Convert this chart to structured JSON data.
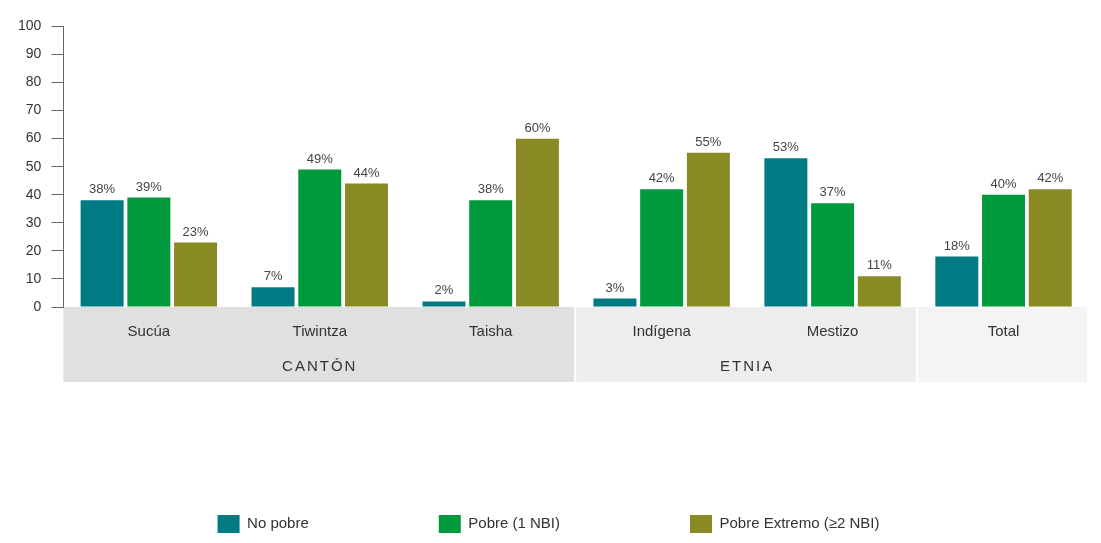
{
  "chart_data": {
    "type": "bar",
    "categories": [
      "Sucúa",
      "Tiwintza",
      "Taisha",
      "Indígena",
      "Mestizo",
      "Total"
    ],
    "series": [
      {
        "name": "No pobre",
        "color": "#007b84",
        "values": [
          38,
          7,
          2,
          3,
          53,
          18
        ],
        "value_labels": [
          "38%",
          "7%",
          "2%",
          "3%",
          "53%",
          "18%"
        ]
      },
      {
        "name": "Pobre (1 NBI)",
        "color": "#009a3d",
        "values": [
          39,
          49,
          38,
          42,
          37,
          40
        ],
        "value_labels": [
          "39%",
          "49%",
          "38%",
          "42%",
          "37%",
          "40%"
        ]
      },
      {
        "name": "Pobre Extremo (≥2 NBI)",
        "color": "#8a8a25",
        "values": [
          23,
          44,
          60,
          55,
          11,
          42
        ],
        "value_labels": [
          "23%",
          "44%",
          "60%",
          "55%",
          "11%",
          "42%"
        ]
      }
    ],
    "annotations": [
      "CANTÓN",
      "ETNIA"
    ],
    "ylim": [
      0,
      100
    ],
    "yticks": [
      0,
      10,
      20,
      30,
      40,
      50,
      60,
      70,
      80,
      90,
      100
    ],
    "grid": false,
    "legend": "bottom"
  }
}
